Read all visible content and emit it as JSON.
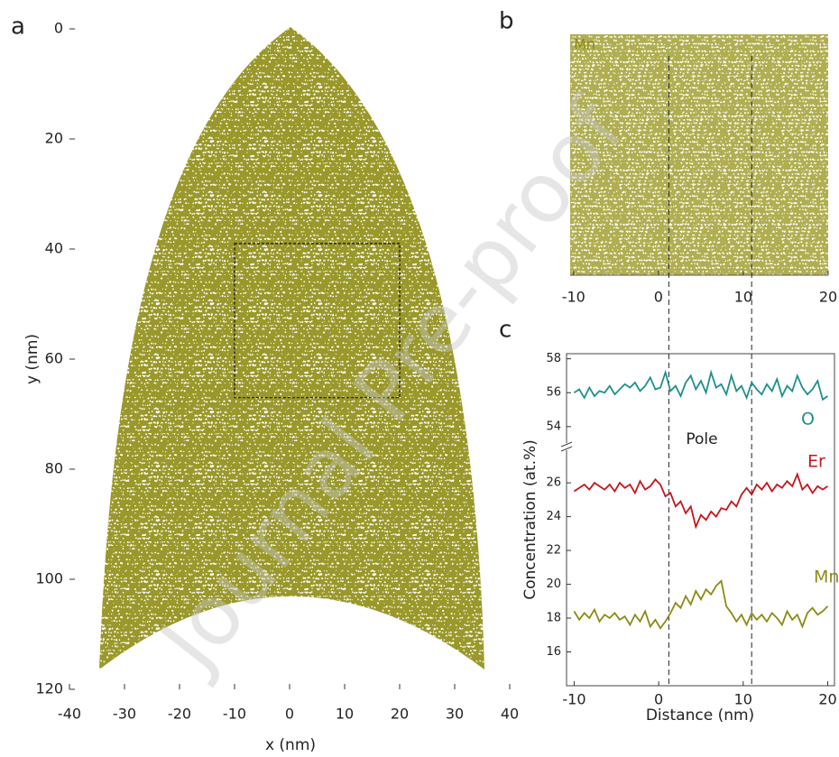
{
  "chart_data": [
    {
      "type": "atom-map",
      "panel_label": "a",
      "xlabel": "x (nm)",
      "ylabel": "y (nm)",
      "xlim": [
        -40,
        40
      ],
      "ylim": [
        0,
        120
      ],
      "y_inverted": true,
      "xticks": [
        -40,
        -30,
        -20,
        -10,
        0,
        10,
        20,
        30,
        40
      ],
      "yticks": [
        0,
        20,
        40,
        60,
        80,
        100,
        120
      ],
      "color": "#9a982a",
      "box": {
        "x": [
          -10,
          20
        ],
        "y": [
          39,
          67
        ]
      }
    },
    {
      "type": "atom-map",
      "panel_label": "b",
      "label": "Mn",
      "xlim": [
        -10.4,
        20
      ],
      "xticks": [
        -10,
        0,
        10,
        20
      ],
      "color": "#b0ae50"
    },
    {
      "type": "line",
      "panel_label": "c",
      "xlabel": "Distance (nm)",
      "ylabel": "Concentration (at.%)",
      "annotation": "Pole",
      "xlim": [
        -10.9,
        20.8
      ],
      "xticks": [
        -10,
        0,
        10,
        20
      ],
      "ylim": [
        14,
        27.5
      ],
      "yticks": [
        16,
        18,
        20,
        22,
        24,
        26
      ],
      "ylim_upper": [
        53.3,
        58.3
      ],
      "yticks_upper": [
        54,
        56,
        58
      ],
      "vlines": [
        1.2,
        11
      ],
      "x": [
        -10,
        -9.4,
        -8.8,
        -8.2,
        -7.6,
        -7,
        -6.4,
        -5.8,
        -5.2,
        -4.6,
        -4,
        -3.4,
        -2.8,
        -2.2,
        -1.6,
        -1,
        -0.4,
        0.2,
        0.8,
        1.4,
        2,
        2.6,
        3.2,
        3.8,
        4.4,
        5,
        5.6,
        6.2,
        6.8,
        7.4,
        8,
        8.6,
        9.2,
        9.8,
        10.4,
        11,
        11.6,
        12.2,
        12.8,
        13.4,
        14,
        14.6,
        15.2,
        15.8,
        16.4,
        17,
        17.6,
        18.2,
        18.8,
        19.4,
        20
      ],
      "series": [
        {
          "name": "O",
          "color": "#1f8f8c",
          "segment": "upper",
          "values": [
            56,
            56.2,
            55.7,
            56.3,
            55.8,
            56.1,
            56,
            56.4,
            55.9,
            56.2,
            56.5,
            56.3,
            56.6,
            56.1,
            56.4,
            56.9,
            56.2,
            56.3,
            57.2,
            56.1,
            56.4,
            55.8,
            56.6,
            57,
            56.2,
            56.7,
            56,
            57.2,
            56.3,
            56.5,
            55.9,
            57,
            56.1,
            56.4,
            55.7,
            56.6,
            56.2,
            55.9,
            56.5,
            56.1,
            56.8,
            55.8,
            56.4,
            56.1,
            57,
            56.3,
            55.9,
            56.2,
            56.7,
            55.6,
            55.8
          ]
        },
        {
          "name": "Er",
          "color": "#c4161c",
          "segment": "lower",
          "values": [
            25.5,
            25.7,
            25.9,
            25.6,
            26,
            25.8,
            25.6,
            25.9,
            25.5,
            26,
            25.7,
            25.9,
            25.4,
            26.1,
            25.6,
            25.8,
            26.2,
            25.9,
            25.2,
            25.4,
            24.6,
            24.9,
            24.2,
            24.6,
            23.4,
            24.1,
            23.8,
            24.3,
            24,
            24.5,
            24.4,
            24.9,
            24.6,
            25.3,
            25.7,
            25.3,
            25.9,
            25.6,
            26,
            25.5,
            25.9,
            25.7,
            26.1,
            25.8,
            26.5,
            25.6,
            25.9,
            25.4,
            25.8,
            25.6,
            25.8
          ]
        },
        {
          "name": "Mn",
          "color": "#8c8a14",
          "segment": "lower",
          "values": [
            18.4,
            17.9,
            18.3,
            18,
            18.5,
            17.8,
            18.2,
            18,
            18.3,
            17.9,
            18.1,
            17.6,
            18.2,
            17.8,
            18.4,
            17.5,
            17.9,
            17.4,
            17.8,
            18.3,
            18.9,
            18.6,
            19.3,
            18.8,
            19.6,
            19.1,
            19.7,
            19.4,
            19.9,
            20.2,
            18.7,
            18.3,
            17.8,
            18.2,
            17.6,
            18.3,
            17.9,
            18.2,
            17.8,
            18.3,
            18,
            17.6,
            18.4,
            17.9,
            18.2,
            17.5,
            18.3,
            18.6,
            18.2,
            18.4,
            18.7
          ]
        }
      ]
    }
  ],
  "watermark": "Journal Pre-proof"
}
